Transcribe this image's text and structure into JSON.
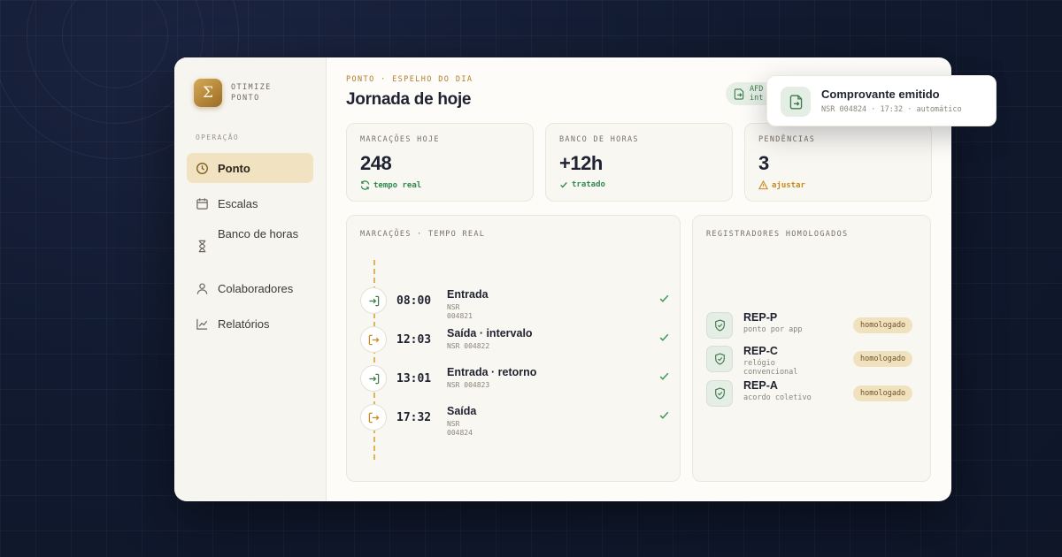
{
  "brand": {
    "name_line1": "OTIMIZE",
    "name_line2": "PONTO",
    "logo_glyph": "Σ"
  },
  "sidebar": {
    "section_label": "OPERAÇÃO",
    "items": [
      {
        "label": "Ponto",
        "icon": "clock-icon",
        "active": true
      },
      {
        "label": "Escalas",
        "icon": "calendar-icon",
        "active": false
      },
      {
        "label": "Banco de horas",
        "icon": "hourglass-icon",
        "active": false
      },
      {
        "label": "Colaboradores",
        "icon": "user-icon",
        "active": false
      },
      {
        "label": "Relatórios",
        "icon": "chart-icon",
        "active": false
      }
    ]
  },
  "header": {
    "eyebrow": "PONTO · ESPELHO DO DIA",
    "title": "Jornada de hoje",
    "afd_chip": {
      "line1": "AFD",
      "line2": "int"
    }
  },
  "stats": [
    {
      "label": "MARCAÇÕES HOJE",
      "value": "248",
      "foot": "tempo real",
      "foot_icon": "refresh-icon",
      "color": "#2f8a4e"
    },
    {
      "label": "BANCO DE HORAS",
      "value": "+12h",
      "foot": "tratado",
      "foot_icon": "check-icon",
      "color": "#2f8a4e"
    },
    {
      "label": "PENDÊNCIAS",
      "value": "3",
      "foot": "ajustar",
      "foot_icon": "warning-icon",
      "color": "#c98a1a"
    }
  ],
  "timeline": {
    "title": "MARCAÇÕES · TEMPO REAL",
    "events": [
      {
        "time": "08:00",
        "title": "Entrada",
        "meta": "NSR 004821",
        "type": "in"
      },
      {
        "time": "12:03",
        "title": "Saída · intervalo",
        "meta": "NSR 004822",
        "type": "out"
      },
      {
        "time": "13:01",
        "title": "Entrada · retorno",
        "meta": "NSR 004823",
        "type": "in"
      },
      {
        "time": "17:32",
        "title": "Saída",
        "meta": "NSR 004824",
        "type": "out"
      }
    ]
  },
  "registradores": {
    "title": "REGISTRADORES HOMOLOGADOS",
    "items": [
      {
        "name": "REP-P",
        "desc": "ponto por app",
        "badge": "homologado"
      },
      {
        "name": "REP-C",
        "desc": "relógio convencional",
        "badge": "homologado"
      },
      {
        "name": "REP-A",
        "desc": "acordo coletivo",
        "badge": "homologado"
      }
    ]
  },
  "toast": {
    "title": "Comprovante emitido",
    "meta": "NSR 004824 · 17:32 · automático"
  },
  "colors": {
    "accent": "#b07c2c",
    "success": "#2f8a4e",
    "warning": "#c98a1a",
    "active_nav": "#f1e3c2"
  }
}
